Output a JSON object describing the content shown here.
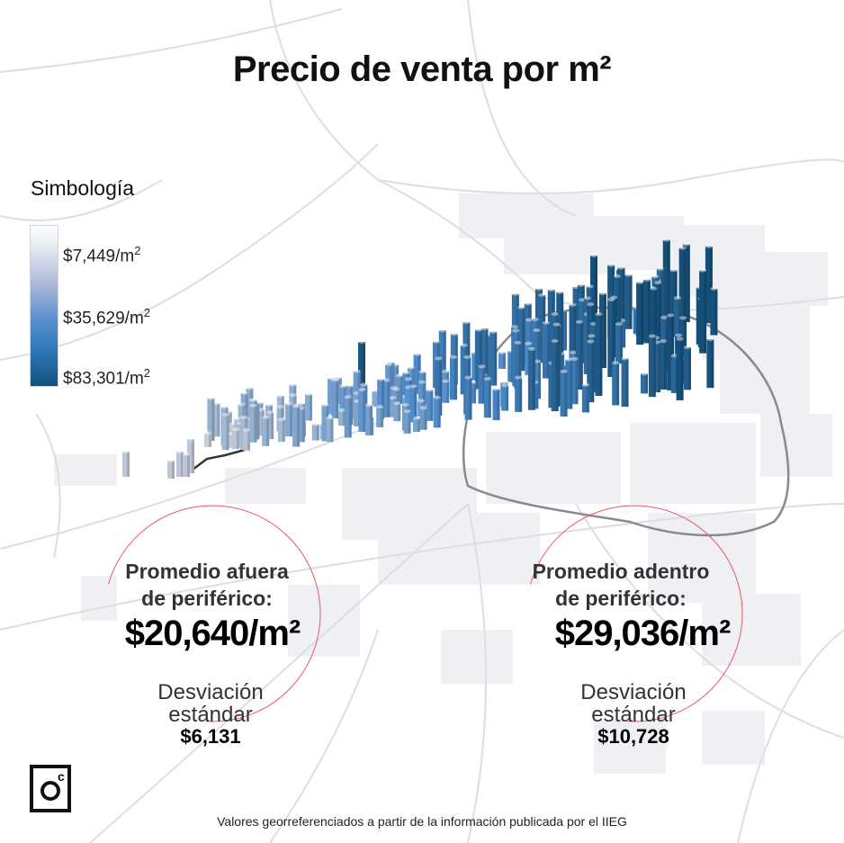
{
  "title": "Precio de venta por m²",
  "legend": {
    "title": "Simbología",
    "stops": [
      {
        "value": "$7,449/m",
        "unit": "2",
        "color": "#ffffff"
      },
      {
        "value": "$35,629/m",
        "unit": "2",
        "color": "#4d8bcb"
      },
      {
        "value": "$83,301/m",
        "unit": "2",
        "color": "#15507a"
      }
    ]
  },
  "stats": {
    "outside": {
      "title_line1": "Promedio afuera",
      "title_line2": "de periférico:",
      "value": "$20,640/m²",
      "sd_label_line1": "Desviación",
      "sd_label_line2": "estándar",
      "sd_value": "$6,131"
    },
    "inside": {
      "title_line1": "Promedio adentro",
      "title_line2": "de periférico:",
      "value": "$29,036/m²",
      "sd_label_line1": "Desviación",
      "sd_label_line2": "estándar",
      "sd_value": "$10,728"
    }
  },
  "footnote": "Valores georreferenciados a partir de la información publicada por el IIEG",
  "colors": {
    "circle": "#e8576a",
    "ring_road": "#8a8a8a",
    "bar_low": "#c9cdd6",
    "bar_high": "#15507a"
  }
}
